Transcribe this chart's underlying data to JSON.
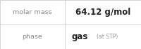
{
  "rows": [
    {
      "label": "molar mass",
      "value": "64.12 g/mol",
      "value_extra": null
    },
    {
      "label": "phase",
      "value": "gas",
      "value_extra": "(at STP)"
    }
  ],
  "bg_color": "#ffffff",
  "divider_color": "#cccccc",
  "label_color": "#888888",
  "value_color": "#222222",
  "extra_color": "#999999",
  "label_fontsize": 6.8,
  "value_fontsize": 8.5,
  "extra_fontsize": 5.5,
  "col_split": 0.46
}
